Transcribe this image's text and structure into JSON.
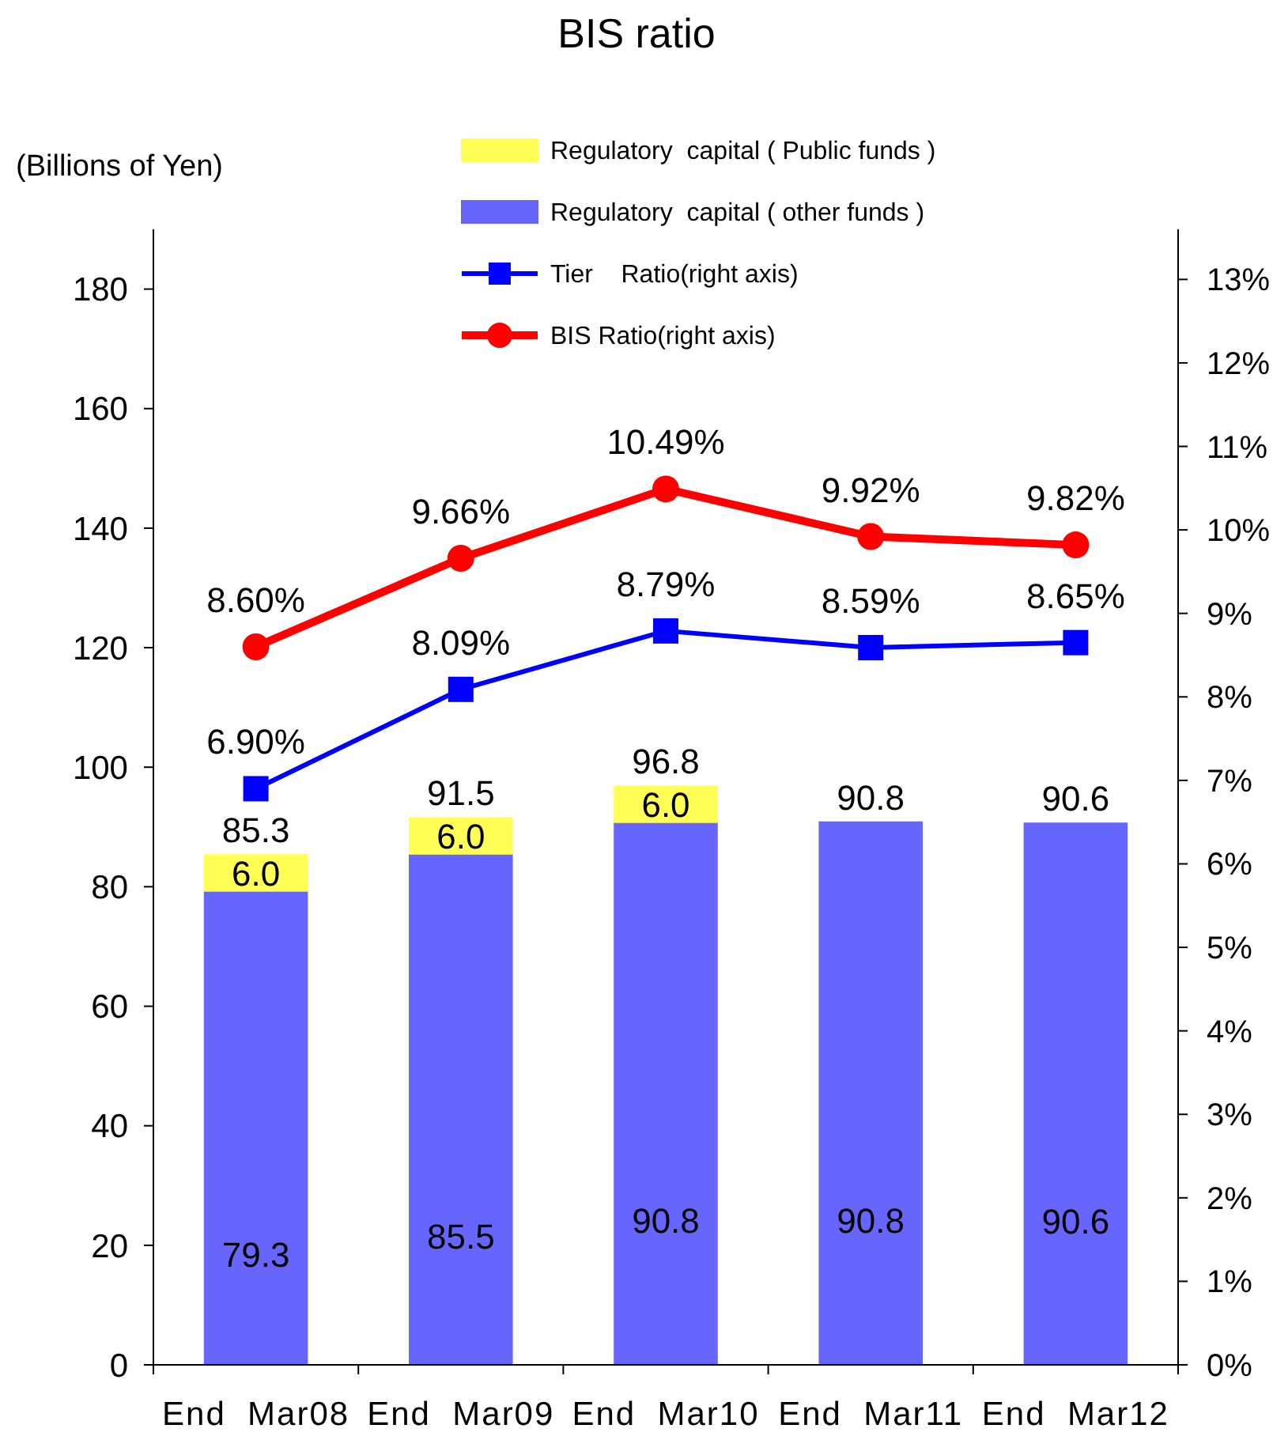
{
  "chart_data": {
    "type": "bar",
    "title": "BIS ratio",
    "ylabel": "(Billions of Yen)",
    "categories": [
      "End  Mar08",
      "End  Mar09",
      "End  Mar10",
      "End  Mar11",
      "End  Mar12"
    ],
    "stacked": true,
    "ylim": [
      0,
      190
    ],
    "yticks": [
      0,
      20,
      40,
      60,
      80,
      100,
      120,
      140,
      160,
      180
    ],
    "y2lim": [
      0,
      13.6
    ],
    "y2ticks": [
      {
        "value": 0,
        "label": "0%"
      },
      {
        "value": 1,
        "label": "1%"
      },
      {
        "value": 2,
        "label": "2%"
      },
      {
        "value": 3,
        "label": "3%"
      },
      {
        "value": 4,
        "label": "4%"
      },
      {
        "value": 5,
        "label": "5%"
      },
      {
        "value": 6,
        "label": "6%"
      },
      {
        "value": 7,
        "label": "7%"
      },
      {
        "value": 8,
        "label": "8%"
      },
      {
        "value": 9,
        "label": "9%"
      },
      {
        "value": 10,
        "label": "10%"
      },
      {
        "value": 11,
        "label": "11%"
      },
      {
        "value": 12,
        "label": "12%"
      },
      {
        "value": 13,
        "label": "13%"
      }
    ],
    "series": [
      {
        "name": "Regulatory  capital ( other funds )",
        "color": "#6666ff",
        "values": [
          79.3,
          85.5,
          90.8,
          90.8,
          90.6
        ],
        "value_labels": [
          "79.3",
          "85.5",
          "90.8",
          "90.8",
          "90.6"
        ]
      },
      {
        "name": "Regulatory  capital ( Public funds )",
        "color": "#ffff55",
        "values": [
          6.0,
          6.0,
          6.0,
          null,
          null
        ],
        "value_labels": [
          "6.0",
          "6.0",
          "6.0",
          null,
          null
        ]
      },
      {
        "name": "Tier    Ratio(right axis)",
        "type": "line",
        "axis": "y2",
        "color": "#0000ff",
        "marker": "square",
        "values": [
          6.9,
          8.09,
          8.79,
          8.59,
          8.65
        ],
        "value_labels": [
          "6.90%",
          "8.09%",
          "8.79%",
          "8.59%",
          "8.65%"
        ]
      },
      {
        "name": "BIS Ratio(right axis)",
        "type": "line",
        "axis": "y2",
        "color": "#ff0000",
        "marker": "circle",
        "values": [
          8.6,
          9.66,
          10.49,
          9.92,
          9.82
        ],
        "value_labels": [
          "8.60%",
          "9.66%",
          "10.49%",
          "9.92%",
          "9.82%"
        ]
      }
    ],
    "totals": [
      "85.3",
      "91.5",
      "96.8",
      "90.8",
      "90.6"
    ],
    "legend": "top",
    "grid": false
  }
}
